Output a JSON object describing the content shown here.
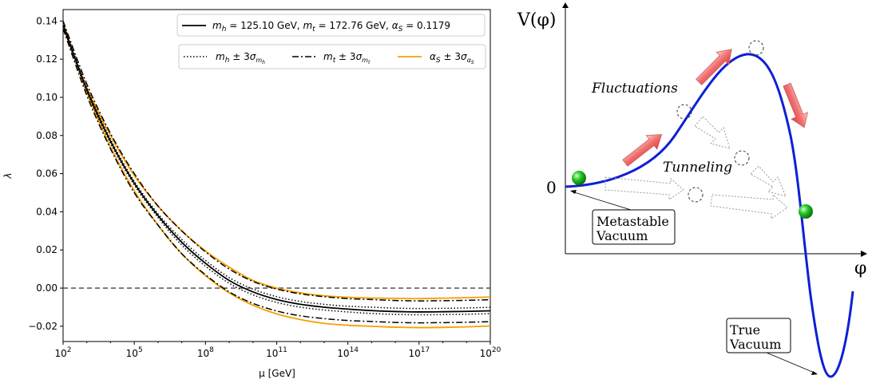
{
  "chart_data": [
    {
      "type": "line",
      "title": "",
      "xlabel": "μ [GeV]",
      "ylabel": "λ",
      "xscale": "log",
      "xlim_log10": [
        2,
        20
      ],
      "ylim": [
        -0.028,
        0.146
      ],
      "xtick_labels": [
        {
          "base": "10",
          "exp": "2",
          "log10": 2
        },
        {
          "base": "10",
          "exp": "5",
          "log10": 5
        },
        {
          "base": "10",
          "exp": "8",
          "log10": 8
        },
        {
          "base": "10",
          "exp": "11",
          "log10": 11
        },
        {
          "base": "10",
          "exp": "14",
          "log10": 14
        },
        {
          "base": "10",
          "exp": "17",
          "log10": 17
        },
        {
          "base": "10",
          "exp": "20",
          "log10": 20
        }
      ],
      "yticks": [
        -0.02,
        0.0,
        0.02,
        0.04,
        0.06,
        0.08,
        0.1,
        0.12,
        0.14
      ],
      "ytick_labels": [
        "−0.02",
        "0.00",
        "0.02",
        "0.04",
        "0.06",
        "0.08",
        "0.10",
        "0.12",
        "0.14"
      ],
      "reference_line": {
        "y": 0.0,
        "style": "dashed",
        "color": "#444444"
      },
      "legend_top": {
        "placement": "upper-right",
        "entries": [
          {
            "label": "m_h = 125.10 GeV, m_t = 172.76 GeV, α_S = 0.1179",
            "style": "solid",
            "color": "#000000"
          }
        ]
      },
      "legend_second": {
        "placement": "upper-right",
        "entries": [
          {
            "label": "m_h ± 3σ_{m_h}",
            "style": "dotted",
            "color": "#000000"
          },
          {
            "label": "m_t ± 3σ_{m_t}",
            "style": "dashdot",
            "color": "#000000"
          },
          {
            "label": "α_S ± 3σ_{α_S}",
            "style": "solid",
            "color": "#f5a000"
          }
        ]
      },
      "series": [
        {
          "name": "central",
          "style": "solid",
          "color": "#000000",
          "width": 1.8,
          "log10_mu": [
            2,
            3,
            4,
            5,
            6,
            7,
            8,
            9,
            10,
            11,
            12,
            13,
            14,
            15,
            16,
            17,
            18,
            19,
            20
          ],
          "lambda": [
            0.138,
            0.104,
            0.077,
            0.055,
            0.038,
            0.024,
            0.013,
            0.004,
            -0.002,
            -0.006,
            -0.0085,
            -0.01,
            -0.011,
            -0.0118,
            -0.0123,
            -0.0125,
            -0.0124,
            -0.0122,
            -0.0119
          ]
        },
        {
          "name": "m_h upper",
          "style": "dotted",
          "color": "#000000",
          "width": 1.5,
          "log10_mu": [
            2,
            3,
            4,
            5,
            6,
            7,
            8,
            9,
            10,
            11,
            12,
            13,
            14,
            15,
            16,
            17,
            18,
            19,
            20
          ],
          "lambda": [
            0.139,
            0.105,
            0.078,
            0.056,
            0.039,
            0.0255,
            0.0145,
            0.0055,
            -0.0005,
            -0.0045,
            -0.007,
            -0.0085,
            -0.0095,
            -0.01,
            -0.0105,
            -0.0107,
            -0.0106,
            -0.0104,
            -0.0101
          ]
        },
        {
          "name": "m_h lower",
          "style": "dotted",
          "color": "#000000",
          "width": 1.5,
          "log10_mu": [
            2,
            3,
            4,
            5,
            6,
            7,
            8,
            9,
            10,
            11,
            12,
            13,
            14,
            15,
            16,
            17,
            18,
            19,
            20
          ],
          "lambda": [
            0.137,
            0.103,
            0.076,
            0.054,
            0.037,
            0.0225,
            0.0115,
            0.0025,
            -0.0035,
            -0.0075,
            -0.01,
            -0.0115,
            -0.0125,
            -0.0133,
            -0.0138,
            -0.014,
            -0.0139,
            -0.0137,
            -0.0134
          ]
        },
        {
          "name": "m_t upper",
          "style": "dashdot",
          "color": "#000000",
          "width": 1.5,
          "log10_mu": [
            2,
            3,
            4,
            5,
            6,
            7,
            8,
            9,
            10,
            11,
            12,
            13,
            14,
            15,
            16,
            17,
            18,
            19,
            20
          ],
          "lambda": [
            0.136,
            0.101,
            0.073,
            0.05,
            0.033,
            0.018,
            0.007,
            -0.002,
            -0.008,
            -0.012,
            -0.0145,
            -0.016,
            -0.017,
            -0.0175,
            -0.018,
            -0.0182,
            -0.0181,
            -0.0179,
            -0.0176
          ]
        },
        {
          "name": "m_t lower",
          "style": "dashdot",
          "color": "#000000",
          "width": 1.5,
          "log10_mu": [
            2,
            3,
            4,
            5,
            6,
            7,
            8,
            9,
            10,
            11,
            12,
            13,
            14,
            15,
            16,
            17,
            18,
            19,
            20
          ],
          "lambda": [
            0.14,
            0.107,
            0.081,
            0.06,
            0.043,
            0.03,
            0.019,
            0.01,
            0.0035,
            -0.0005,
            -0.003,
            -0.0045,
            -0.0055,
            -0.006,
            -0.0065,
            -0.0067,
            -0.0066,
            -0.0064,
            -0.0061
          ]
        },
        {
          "name": "α_S upper",
          "style": "solid",
          "color": "#f5a000",
          "width": 1.8,
          "log10_mu": [
            2,
            3,
            4,
            5,
            6,
            7,
            8,
            9,
            10,
            11,
            12,
            13,
            14,
            15,
            16,
            17,
            18,
            19,
            20
          ],
          "lambda": [
            0.137,
            0.105,
            0.08,
            0.059,
            0.043,
            0.03,
            0.0195,
            0.011,
            0.004,
            0.0,
            -0.0025,
            -0.004,
            -0.0048,
            -0.0052,
            -0.0054,
            -0.0055,
            -0.0053,
            -0.005,
            -0.0047
          ]
        },
        {
          "name": "α_S lower",
          "style": "solid",
          "color": "#f5a000",
          "width": 1.8,
          "log10_mu": [
            2,
            3,
            4,
            5,
            6,
            7,
            8,
            9,
            10,
            11,
            12,
            13,
            14,
            15,
            16,
            17,
            18,
            19,
            20
          ],
          "lambda": [
            0.139,
            0.103,
            0.074,
            0.051,
            0.033,
            0.018,
            0.0065,
            -0.0025,
            -0.009,
            -0.0135,
            -0.0165,
            -0.0185,
            -0.0195,
            -0.02,
            -0.0205,
            -0.0207,
            -0.0206,
            -0.0203,
            -0.0199
          ]
        }
      ]
    },
    {
      "type": "diagram",
      "title": "",
      "ylabel": "V(φ)",
      "xlabel": "φ",
      "zero_label": "0",
      "curve_color": "#0f1fd6",
      "labels": {
        "fluctuations": "Fluctuations",
        "tunneling": "Tunneling",
        "metastable_line1": "Metastable",
        "metastable_line2": "Vacuum",
        "true_line1": "True",
        "true_line2": "Vacuum"
      },
      "ball_color": "#18b818",
      "arrow_color": "#f08080"
    }
  ]
}
